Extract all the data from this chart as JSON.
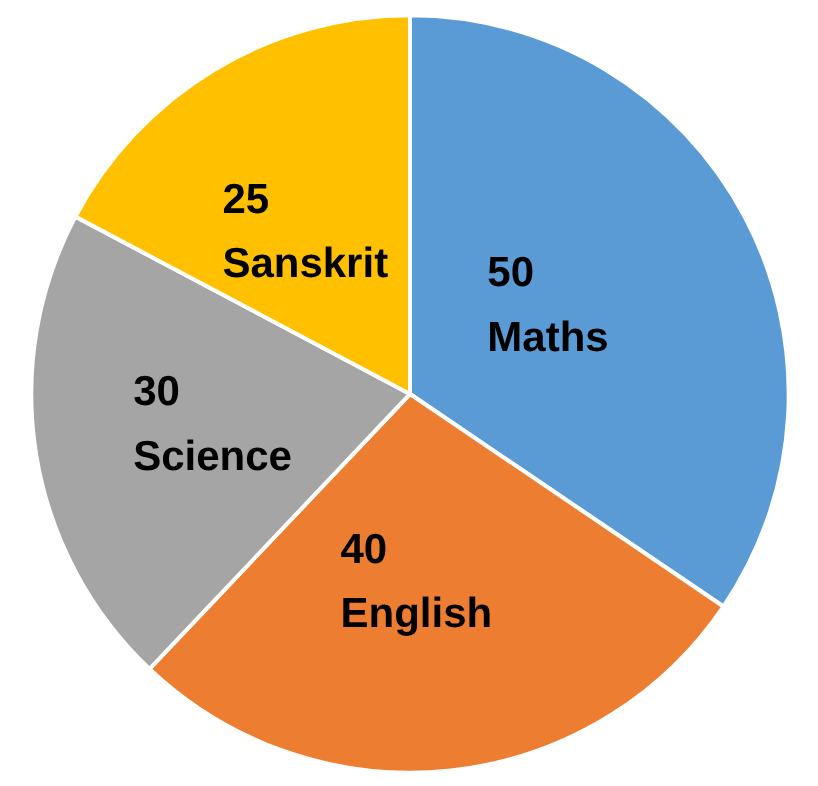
{
  "chart_data": {
    "type": "pie",
    "categories": [
      "Maths",
      "English",
      "Science",
      "Sanskrit"
    ],
    "values": [
      50,
      40,
      30,
      25
    ],
    "colors": [
      "#5b9bd5",
      "#ed7d31",
      "#a5a5a5",
      "#ffc000"
    ],
    "data_labels": true
  }
}
